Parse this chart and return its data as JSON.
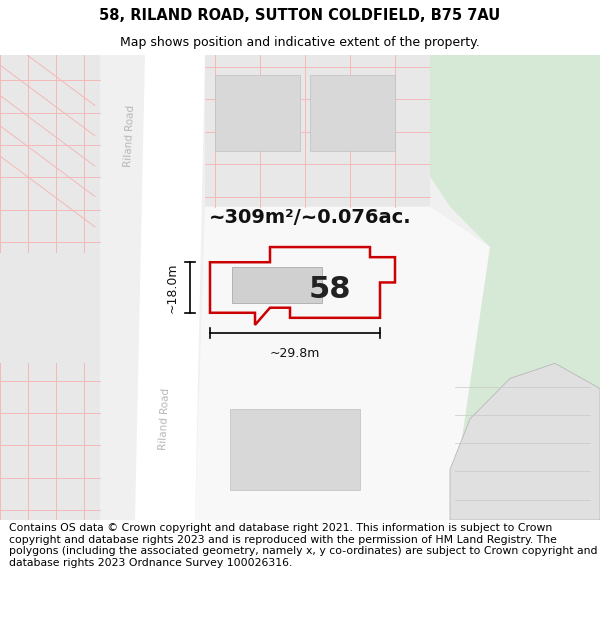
{
  "title": "58, RILAND ROAD, SUTTON COLDFIELD, B75 7AU",
  "subtitle": "Map shows position and indicative extent of the property.",
  "footer": "Contains OS data © Crown copyright and database right 2021. This information is subject to Crown copyright and database rights 2023 and is reproduced with the permission of HM Land Registry. The polygons (including the associated geometry, namely x, y co-ordinates) are subject to Crown copyright and database rights 2023 Ordnance Survey 100026316.",
  "area_label": "~309m²/~0.076ac.",
  "width_label": "~29.8m",
  "height_label": "~18.0m",
  "number_label": "58",
  "bg_color": "#ffffff",
  "map_bg": "#f0f0f0",
  "block_color": "#e8e8e8",
  "bldg_color": "#d8d8d8",
  "plot_outline": "#cc0000",
  "grid_color": "#f5b8b8",
  "road_white": "#ffffff",
  "green_color": "#d6e8d6",
  "road_label_color": "#b8b8b8",
  "title_fontsize": 10.5,
  "subtitle_fontsize": 9,
  "footer_fontsize": 7.8,
  "area_fontsize": 14,
  "number_fontsize": 22,
  "dim_fontsize": 9
}
